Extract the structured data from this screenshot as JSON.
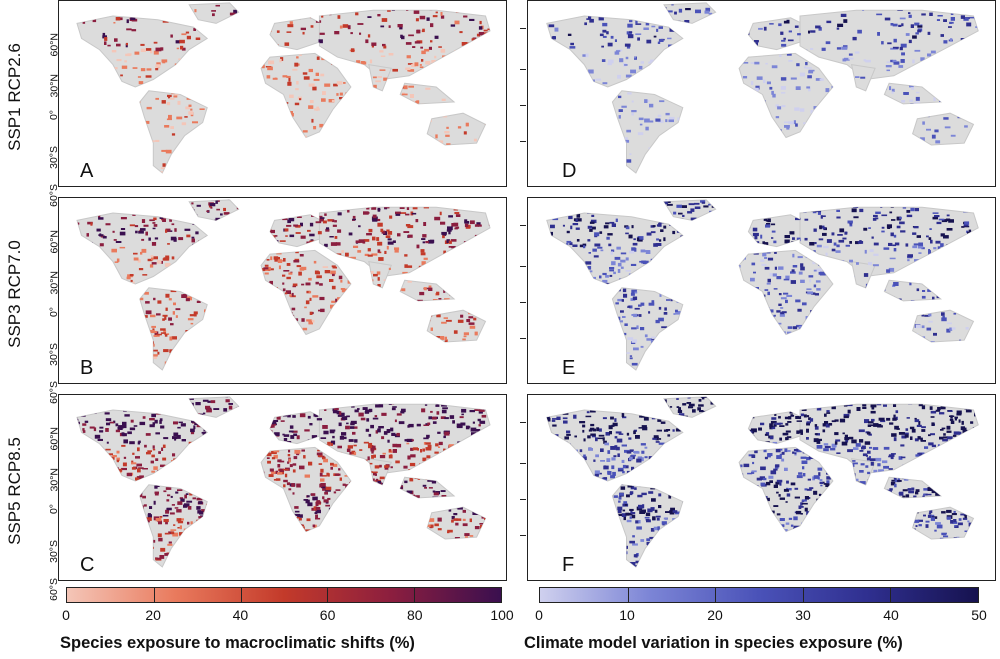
{
  "rows": [
    {
      "label": "SSP1 RCP2.6",
      "left_letter": "A",
      "right_letter": "D"
    },
    {
      "label": "SSP3 RCP7.0",
      "left_letter": "B",
      "right_letter": "E"
    },
    {
      "label": "SSP5 RCP8.5",
      "left_letter": "C",
      "right_letter": "F"
    }
  ],
  "latitudes": [
    "60°N",
    "30°N",
    "0°",
    "30°S",
    "60°S"
  ],
  "colorbars": [
    {
      "title": "Species exposure to macroclimatic shifts (%)",
      "ticks": [
        "0",
        "20",
        "40",
        "60",
        "80",
        "100"
      ],
      "colors": [
        "#f4c6b8",
        "#e97a5d",
        "#c33a2a",
        "#8b1e3f",
        "#3a0f4f"
      ]
    },
    {
      "title": "Climate model variation in species exposure (%)",
      "ticks": [
        "0",
        "10",
        "20",
        "30",
        "40",
        "50"
      ],
      "colors": [
        "#cfd0ee",
        "#7c85d6",
        "#4a52b8",
        "#2f2f8f",
        "#16124f"
      ]
    }
  ],
  "colors": {
    "land": "#dcdcdc",
    "border": "#222222"
  }
}
